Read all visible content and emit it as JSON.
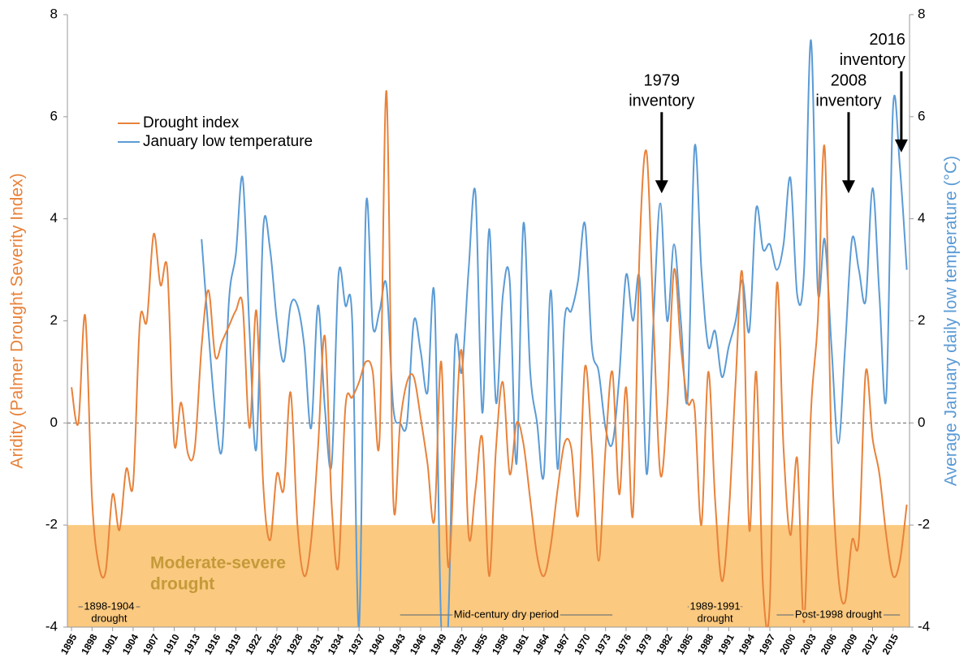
{
  "chart_data": {
    "type": "line",
    "x": [
      1895,
      1896,
      1897,
      1898,
      1899,
      1900,
      1901,
      1902,
      1903,
      1904,
      1905,
      1906,
      1907,
      1908,
      1909,
      1910,
      1911,
      1912,
      1913,
      1914,
      1915,
      1916,
      1917,
      1918,
      1919,
      1920,
      1921,
      1922,
      1923,
      1924,
      1925,
      1926,
      1927,
      1928,
      1929,
      1930,
      1931,
      1932,
      1933,
      1934,
      1935,
      1936,
      1937,
      1938,
      1939,
      1940,
      1941,
      1942,
      1943,
      1944,
      1945,
      1946,
      1947,
      1948,
      1949,
      1950,
      1951,
      1952,
      1953,
      1954,
      1955,
      1956,
      1957,
      1958,
      1959,
      1960,
      1961,
      1962,
      1963,
      1964,
      1965,
      1966,
      1967,
      1968,
      1969,
      1970,
      1971,
      1972,
      1973,
      1974,
      1975,
      1976,
      1977,
      1978,
      1979,
      1980,
      1981,
      1982,
      1983,
      1984,
      1985,
      1986,
      1987,
      1988,
      1989,
      1990,
      1991,
      1992,
      1993,
      1994,
      1995,
      1996,
      1997,
      1998,
      1999,
      2000,
      2001,
      2002,
      2003,
      2004,
      2005,
      2006,
      2007,
      2008,
      2009,
      2010,
      2011,
      2012,
      2013,
      2014,
      2015,
      2016,
      2017
    ],
    "series": [
      {
        "name": "Drought index",
        "color": "#e8823a",
        "values": [
          0.7,
          0.0,
          2.1,
          -1.5,
          -2.8,
          -2.9,
          -1.4,
          -2.1,
          -0.9,
          -1.2,
          2.0,
          2.0,
          3.7,
          2.7,
          3.0,
          -0.4,
          0.4,
          -0.6,
          -0.5,
          1.5,
          2.6,
          1.3,
          1.6,
          1.9,
          2.2,
          2.3,
          -0.1,
          2.2,
          -1.2,
          -2.3,
          -1.0,
          -1.3,
          0.6,
          -2.0,
          -3.0,
          -2.3,
          -0.5,
          1.7,
          -1.6,
          -2.8,
          0.3,
          0.5,
          0.8,
          1.2,
          1.0,
          -0.3,
          6.5,
          -1.5,
          0.0,
          0.8,
          0.9,
          0.1,
          -0.8,
          -1.9,
          1.2,
          -2.8,
          -0.5,
          1.4,
          -2.2,
          -1.3,
          -0.3,
          -3.0,
          -0.5,
          0.8,
          -1.0,
          0.0,
          -0.4,
          -1.5,
          -2.6,
          -3.0,
          -2.4,
          -1.3,
          -0.4,
          -0.5,
          -1.8,
          1.1,
          -0.5,
          -2.7,
          -0.5,
          1.0,
          -1.4,
          0.7,
          -1.8,
          3.5,
          5.3,
          2.0,
          -1.0,
          0.3,
          3.0,
          1.5,
          0.4,
          0.3,
          -2.0,
          1.0,
          -1.5,
          -3.1,
          -1.8,
          0.8,
          2.9,
          -2.1,
          1.0,
          -3.2,
          -3.5,
          2.7,
          -0.5,
          -2.2,
          -0.7,
          -3.9,
          0.2,
          2.0,
          5.4,
          -0.5,
          -3.0,
          -3.5,
          -2.3,
          -2.3,
          1.0,
          -0.3,
          -1.0,
          -2.2,
          -3.0,
          -2.7,
          -1.6
        ]
      },
      {
        "name": "January low temperature",
        "color": "#5b9bd5",
        "axis": "y2",
        "values": [
          null,
          null,
          null,
          null,
          null,
          null,
          null,
          null,
          null,
          null,
          null,
          null,
          null,
          null,
          null,
          null,
          null,
          null,
          null,
          3.6,
          1.8,
          0.2,
          -0.5,
          2.4,
          3.3,
          4.8,
          1.8,
          -0.5,
          3.8,
          3.4,
          2.0,
          1.2,
          2.3,
          2.3,
          1.5,
          -0.1,
          2.3,
          0.3,
          -0.8,
          2.9,
          2.3,
          2.0,
          -4.0,
          4.2,
          1.9,
          2.2,
          2.7,
          0.3,
          0.0,
          0.0,
          2.0,
          1.4,
          0.6,
          2.5,
          -4.0,
          -4.0,
          1.5,
          1.0,
          3.0,
          4.5,
          0.2,
          3.8,
          0.4,
          2.5,
          2.8,
          -0.8,
          3.9,
          1.0,
          0.0,
          -1.0,
          2.6,
          -0.9,
          2.0,
          2.2,
          2.8,
          3.9,
          1.5,
          1.0,
          -0.1,
          -0.4,
          0.9,
          2.9,
          2.0,
          2.8,
          -1.0,
          2.0,
          4.3,
          2.0,
          3.5,
          2.0,
          0.5,
          5.4,
          3.0,
          1.5,
          1.8,
          0.9,
          1.5,
          2.0,
          2.8,
          1.8,
          4.2,
          3.4,
          3.5,
          3.0,
          3.5,
          4.8,
          2.5,
          3.0,
          7.5,
          2.6,
          3.6,
          1.5,
          -0.4,
          1.5,
          3.6,
          3.0,
          2.4,
          4.6,
          2.5,
          0.5,
          6.2,
          5.0,
          3.0
        ]
      }
    ],
    "xlim": [
      1894.4,
      2017.4
    ],
    "xticks": [
      1895,
      1898,
      1901,
      1904,
      1907,
      1910,
      1913,
      1916,
      1919,
      1922,
      1925,
      1928,
      1931,
      1934,
      1937,
      1940,
      1943,
      1946,
      1949,
      1952,
      1955,
      1958,
      1961,
      1964,
      1967,
      1970,
      1973,
      1976,
      1979,
      1982,
      1985,
      1988,
      1991,
      1994,
      1997,
      2000,
      2003,
      2006,
      2009,
      2012,
      2015
    ],
    "ylim": [
      -4,
      8
    ],
    "yticks": [
      -4,
      -2,
      0,
      2,
      4,
      6,
      8
    ],
    "y2lim": [
      -4,
      8
    ],
    "y2ticks": [
      -4,
      -2,
      0,
      2,
      4,
      6,
      8
    ],
    "ylabel": "Aridity (Palmer Drought Severity Index)",
    "y2label": "Average January daily low temperature (°C)",
    "legend": "upper left",
    "reference_line": 0,
    "shaded_band": {
      "from": -4,
      "to": -2,
      "color": "#fbc97f",
      "text_color": "#c49a3a",
      "label": [
        "Moderate-severe",
        "drought"
      ]
    },
    "periods": [
      {
        "label": [
          "1898-1904",
          "drought"
        ],
        "start": 1896,
        "end": 1905
      },
      {
        "label": [
          "Mid-century dry period"
        ],
        "start": 1943,
        "end": 1974
      },
      {
        "label": [
          "1989-1991",
          "drought"
        ],
        "start": 1985,
        "end": 1993
      },
      {
        "label": [
          "Post-1998 drought"
        ],
        "start": 1998,
        "end": 2016
      }
    ],
    "annotations": [
      {
        "label": [
          "1979",
          "inventory"
        ],
        "x": 1981.2,
        "y": 4.5
      },
      {
        "label": [
          "2008",
          "inventory"
        ],
        "x": 2008.5,
        "y": 4.5
      },
      {
        "label": [
          "2016",
          "inventory"
        ],
        "x": 2016.2,
        "y": 5.3
      }
    ]
  }
}
